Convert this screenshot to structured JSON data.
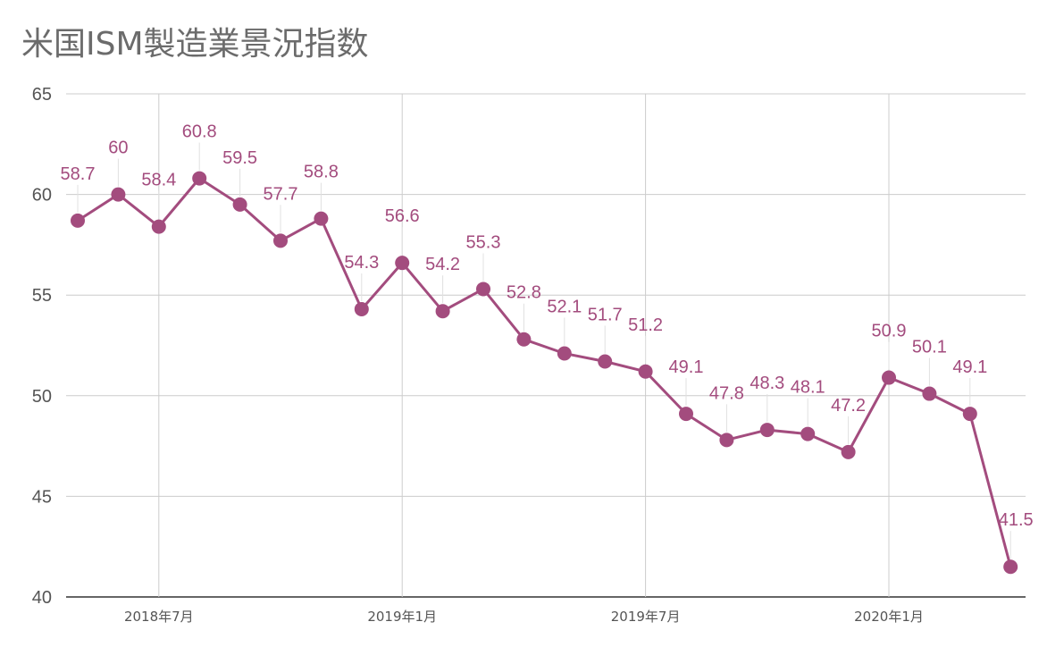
{
  "title": "米国ISM製造業景況指数",
  "colors": {
    "series": "#a34c7e",
    "grid": "#cccccc",
    "axis": "#555555"
  },
  "chart_data": {
    "type": "line",
    "title": "米国ISM製造業景況指数",
    "x": [
      "2018-05",
      "2018-06",
      "2018-07",
      "2018-08",
      "2018-09",
      "2018-10",
      "2018-11",
      "2018-12",
      "2019-01",
      "2019-02",
      "2019-03",
      "2019-04",
      "2019-05",
      "2019-06",
      "2019-07",
      "2019-08",
      "2019-09",
      "2019-10",
      "2019-11",
      "2019-12",
      "2020-01",
      "2020-02",
      "2020-03",
      "2020-04"
    ],
    "series": [
      {
        "values": [
          58.7,
          60,
          58.4,
          60.8,
          59.5,
          57.7,
          58.8,
          54.3,
          56.6,
          54.2,
          55.3,
          52.8,
          52.1,
          51.7,
          51.2,
          49.1,
          47.8,
          48.3,
          48.1,
          47.2,
          50.9,
          50.1,
          49.1,
          41.5
        ]
      }
    ],
    "data_labels": [
      "58.7",
      "60",
      "58.4",
      "60.8",
      "59.5",
      "57.7",
      "58.8",
      "54.3",
      "56.6",
      "54.2",
      "55.3",
      "52.8",
      "52.1",
      "51.7",
      "51.2",
      "49.1",
      "47.8",
      "48.3",
      "48.1",
      "47.2",
      "50.9",
      "50.1",
      "49.1",
      "41.5"
    ],
    "ylim": [
      40,
      65
    ],
    "yticks": [
      "40",
      "45",
      "50",
      "55",
      "60",
      "65"
    ],
    "xticks": [
      {
        "at": "2018-07",
        "label": "2018年7月"
      },
      {
        "at": "2019-01",
        "label": "2019年1月"
      },
      {
        "at": "2019-07",
        "label": "2019年7月"
      },
      {
        "at": "2020-01",
        "label": "2020年1月"
      }
    ],
    "grid": true,
    "legend": "none",
    "xlabel": "",
    "ylabel": ""
  }
}
